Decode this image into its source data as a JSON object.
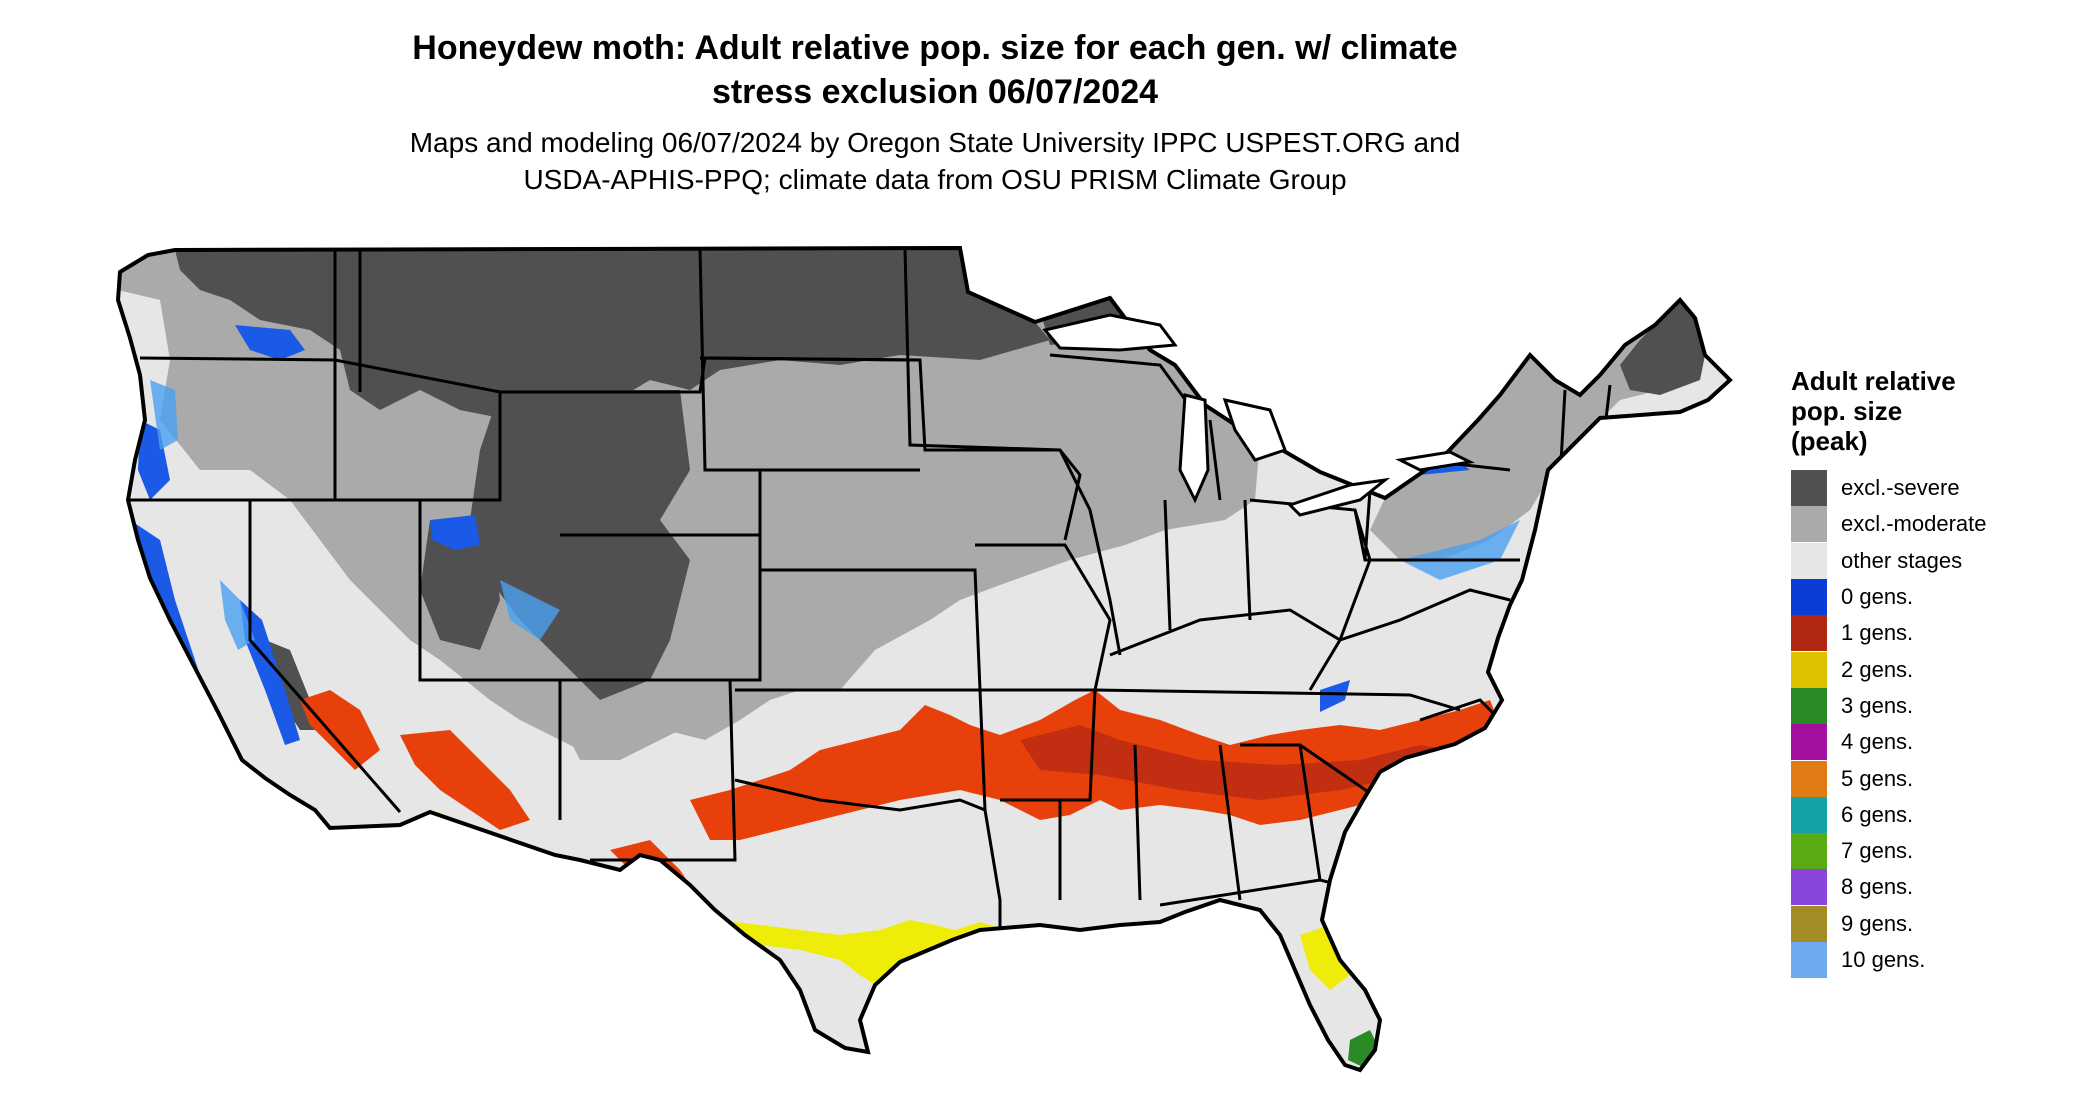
{
  "title": {
    "line1": "Honeydew moth: Adult relative pop. size for each gen. w/ climate",
    "line2": "stress exclusion 06/07/2024"
  },
  "subtitle": {
    "line1": "Maps and modeling 06/07/2024 by Oregon State University IPPC USPEST.ORG and",
    "line2": "USDA-APHIS-PPQ; climate data from OSU PRISM Climate Group"
  },
  "legend": {
    "title_line1": "Adult relative",
    "title_line2": "pop. size",
    "title_line3": "(peak)",
    "items": [
      {
        "label": "excl.-severe",
        "color": "#505050"
      },
      {
        "label": "excl.-moderate",
        "color": "#aaaaaa"
      },
      {
        "label": "other stages",
        "color": "#e6e6e6"
      },
      {
        "label": "0 gens.",
        "color": "#0a3dd8"
      },
      {
        "label": "1 gens.",
        "color": "#b22614"
      },
      {
        "label": "2 gens.",
        "color": "#dcc200"
      },
      {
        "label": "3 gens.",
        "color": "#2a8a24"
      },
      {
        "label": "4 gens.",
        "color": "#a4109e"
      },
      {
        "label": "5 gens.",
        "color": "#e07b14"
      },
      {
        "label": "6 gens.",
        "color": "#12a4a4"
      },
      {
        "label": "7 gens.",
        "color": "#5aaa14"
      },
      {
        "label": "8 gens.",
        "color": "#8a46dc"
      },
      {
        "label": "9 gens.",
        "color": "#a48c24"
      },
      {
        "label": "10 gens.",
        "color": "#6eaaf0"
      }
    ]
  },
  "map": {
    "colors": {
      "background": "#e6e6e6",
      "severe": "#505050",
      "moderate": "#aaaaaa",
      "zero_gens": "#1a5ae6",
      "zero_gens_light": "#4aa0f0",
      "one_gen": "#e8400a",
      "one_gen_dark": "#b22614",
      "two_gens": "#f0ec0a",
      "three_gens": "#2a8a24",
      "borders": "#000000"
    }
  }
}
